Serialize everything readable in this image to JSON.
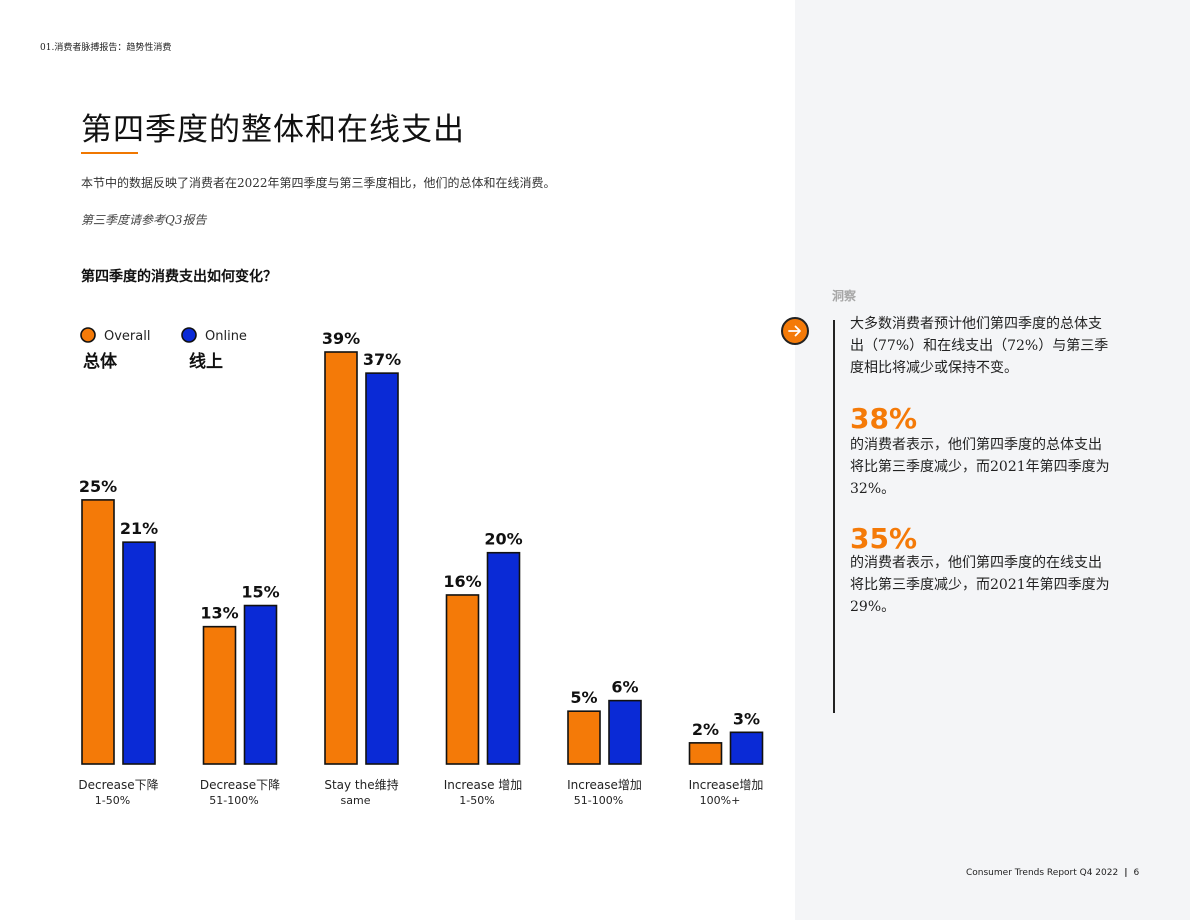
{
  "header": {
    "breadcrumb": "01.消费者脉搏报告：趋势性消费",
    "title": "第四季度的整体和在线支出",
    "intro": "本节中的数据反映了消费者在2022年第四季度与第三季度相比，他们的总体和在线消费。",
    "note": "第三季度请参考Q3报告"
  },
  "chart_question": "第四季度的消费支出如何变化？",
  "colors": {
    "overall": "#f47a08",
    "online": "#0a2ad6",
    "accent": "#f47a08"
  },
  "chart_data": {
    "type": "bar",
    "title": "第四季度的消费支出如何变化？",
    "ylim": [
      0,
      39
    ],
    "legend_position": "top-left",
    "categories": [
      {
        "line1": "Decrease下降",
        "line2": "1-50%"
      },
      {
        "line1": "Decrease下降",
        "line2": "51-100%"
      },
      {
        "line1": "Stay the维持",
        "line2": "same"
      },
      {
        "line1": "Increase 增加",
        "line2": "1-50%"
      },
      {
        "line1": "Increase增加",
        "line2": "51-100%"
      },
      {
        "line1": "Increase增加",
        "line2": "100%+"
      }
    ],
    "series": [
      {
        "name": "Overall",
        "name_cn": "总体",
        "color": "#f47a08",
        "values": [
          25,
          13,
          39,
          16,
          5,
          2
        ]
      },
      {
        "name": "Online",
        "name_cn": "线上",
        "color": "#0a2ad6",
        "values": [
          21,
          15,
          37,
          20,
          6,
          3
        ]
      }
    ],
    "unit": "%"
  },
  "insights": {
    "label": "洞察",
    "summary": "大多数消费者预计他们第四季度的总体支出（77%）和在线支出（72%）与第三季度相比将减少或保持不变。",
    "stat1_value": "38%",
    "stat1_text": "的消费者表示，他们第四季度的总体支出将比第三季度减少，而2021年第四季度为32%。",
    "stat2_value": "35%",
    "stat2_text": "的消费者表示，他们第四季度的在线支出将比第三季度减少，而2021年第四季度为29%。"
  },
  "footer": {
    "report": "Consumer Trends Report Q4 2022",
    "page": "6"
  }
}
